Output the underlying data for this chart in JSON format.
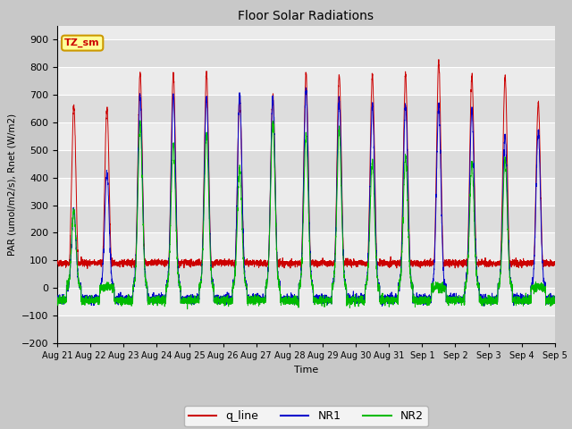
{
  "title": "Floor Solar Radiations",
  "xlabel": "Time",
  "ylabel": "PAR (umol/m2/s), Rnet (W/m2)",
  "ylim": [
    -200,
    950
  ],
  "yticks": [
    -200,
    -100,
    0,
    100,
    200,
    300,
    400,
    500,
    600,
    700,
    800,
    900
  ],
  "plot_bg_light": "#ebebeb",
  "plot_bg_dark": "#dddddd",
  "fig_bg": "#c8c8c8",
  "annotation_text": "TZ_sm",
  "annotation_bg": "#ffff99",
  "annotation_border": "#cc9900",
  "colors": {
    "q_line": "#cc0000",
    "NR1": "#0000cc",
    "NR2": "#00bb00"
  },
  "legend_labels": [
    "q_line",
    "NR1",
    "NR2"
  ],
  "n_days": 15,
  "pts_per_day": 288,
  "x_labels": [
    "Aug 21",
    "Aug 22",
    "Aug 23",
    "Aug 24",
    "Aug 25",
    "Aug 26",
    "Aug 27",
    "Aug 28",
    "Aug 29",
    "Aug 30",
    "Aug 31",
    "Sep 1",
    "Sep 2",
    "Sep 3",
    "Sep 4",
    "Sep 5"
  ],
  "q_peaks": [
    660,
    650,
    780,
    775,
    780,
    700,
    700,
    778,
    775,
    770,
    778,
    815,
    770,
    768,
    670
  ],
  "nr1_peaks": [
    280,
    420,
    695,
    700,
    695,
    700,
    690,
    720,
    680,
    660,
    665,
    660,
    645,
    555,
    565
  ],
  "nr2_peaks": [
    280,
    5,
    595,
    520,
    558,
    435,
    605,
    555,
    575,
    460,
    475,
    5,
    450,
    465,
    5
  ],
  "q_night": 90,
  "nr1_night": -40,
  "nr2_night": -45,
  "day_start": 0.28,
  "day_end": 0.72
}
